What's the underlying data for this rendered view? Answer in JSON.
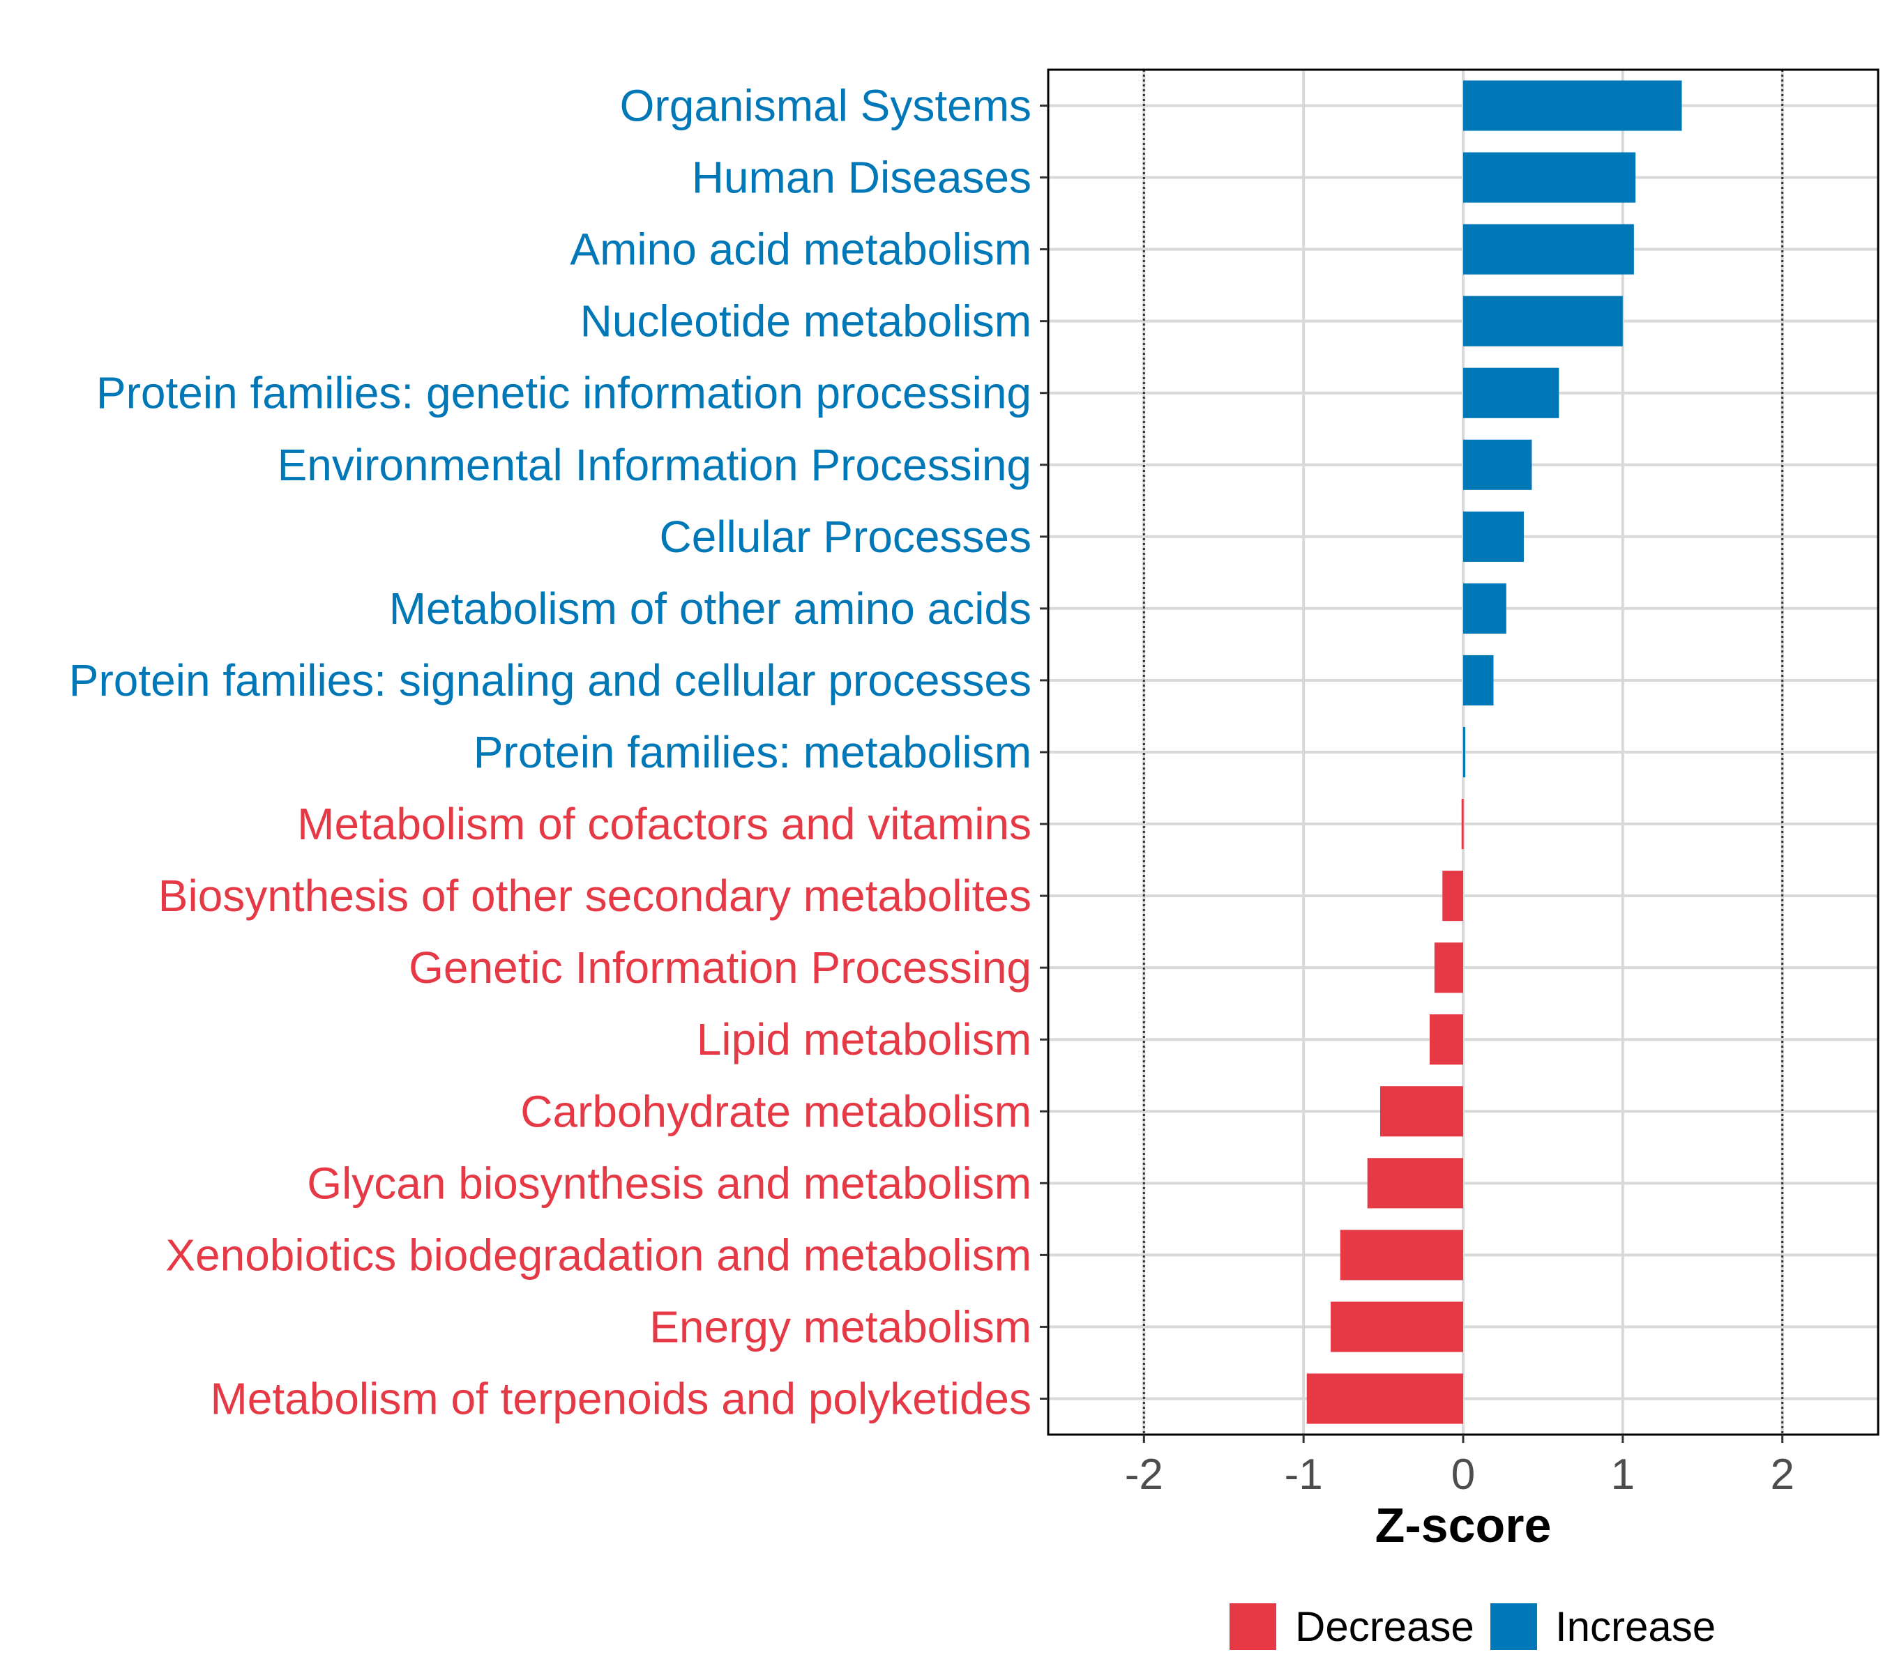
{
  "chart_data": {
    "type": "bar",
    "orientation": "horizontal",
    "title": "",
    "xlabel": "Z-score",
    "ylabel": "",
    "xlim": [
      -2.6,
      2.6
    ],
    "xticks": [
      -2,
      -1,
      0,
      1,
      2
    ],
    "tick_labels": [
      "-2",
      "-1",
      "0",
      "1",
      "2"
    ],
    "reference_lines": [
      -2,
      2
    ],
    "grid": true,
    "colors": {
      "Decrease": "#E63946",
      "Increase": "#0077B6"
    },
    "legend": {
      "position": "bottom",
      "entries": [
        "Decrease",
        "Increase"
      ]
    },
    "categories": [
      "Organismal Systems",
      "Human Diseases",
      "Amino acid metabolism",
      "Nucleotide metabolism",
      "Protein families: genetic information processing",
      "Environmental Information Processing",
      "Cellular Processes",
      "Metabolism of other amino acids",
      "Protein families: signaling and cellular processes",
      "Protein families: metabolism",
      "Metabolism of cofactors and vitamins",
      "Biosynthesis of other secondary metabolites",
      "Genetic Information Processing",
      "Lipid metabolism",
      "Carbohydrate metabolism",
      "Glycan biosynthesis and metabolism",
      "Xenobiotics biodegradation and metabolism",
      "Energy metabolism",
      "Metabolism of terpenoids and polyketides"
    ],
    "values": [
      1.37,
      1.08,
      1.07,
      1.0,
      0.6,
      0.43,
      0.38,
      0.27,
      0.19,
      0.01,
      -0.01,
      -0.13,
      -0.18,
      -0.21,
      -0.52,
      -0.6,
      -0.77,
      -0.83,
      -0.98
    ],
    "direction": [
      "Increase",
      "Increase",
      "Increase",
      "Increase",
      "Increase",
      "Increase",
      "Increase",
      "Increase",
      "Increase",
      "Increase",
      "Decrease",
      "Decrease",
      "Decrease",
      "Decrease",
      "Decrease",
      "Decrease",
      "Decrease",
      "Decrease",
      "Decrease"
    ]
  }
}
